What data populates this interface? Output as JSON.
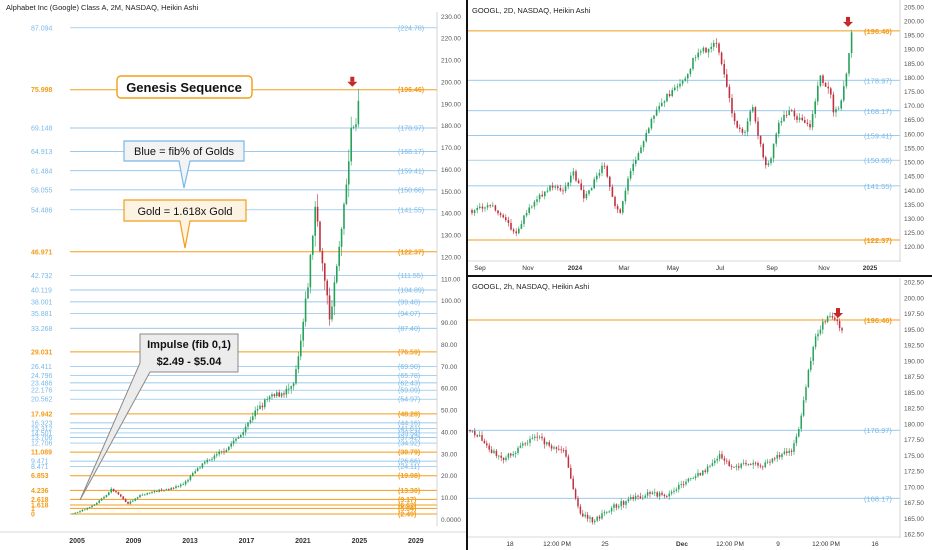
{
  "colors": {
    "gold": "#f29d1a",
    "blue": "#79b9e8",
    "up": "#26a15a",
    "down": "#c0303d",
    "arrow": "#c62828",
    "axis_text": "#555555"
  },
  "left_panel": {
    "title": "Alphabet Inc (Google) Class A, 2M, NASDAQ, Heikin Ashi",
    "annotations": {
      "genesis": "Genesis Sequence",
      "blue_note": "Blue = fib% of Golds",
      "gold_note": "Gold = 1.618x Gold",
      "impulse_line1": "Impulse (fib 0,1)",
      "impulse_line2": "$2.49 - $5.04"
    }
  },
  "top_right_panel": {
    "title": "GOOGL, 2D, NASDAQ, Heikin Ashi"
  },
  "bottom_right_panel": {
    "title": "GOOGL, 2h, NASDAQ, Heikin Ashi"
  },
  "chart_data": [
    {
      "type": "candlestick",
      "title": "Alphabet Inc (Google) Class A, 2M, NASDAQ, Heikin Ashi",
      "x_ticks": [
        "2005",
        "2009",
        "2013",
        "2017",
        "2021",
        "2025",
        "2029"
      ],
      "x_range": [
        2004.5,
        2030.5
      ],
      "ylim": [
        -3,
        232
      ],
      "y_ticks": [
        "230.00",
        "220.00",
        "210.00",
        "200.00",
        "190.00",
        "180.00",
        "170.00",
        "160.00",
        "150.00",
        "140.00",
        "130.00",
        "120.00",
        "110.00",
        "100.00",
        "90.00",
        "80.00",
        "70.00",
        "60.00",
        "50.00",
        "40.00",
        "30.00",
        "20.00",
        "10.00",
        "0.0000"
      ],
      "price_path": [
        [
          2004.7,
          2.5
        ],
        [
          2005.5,
          4.5
        ],
        [
          2006.5,
          8
        ],
        [
          2007.5,
          14
        ],
        [
          2008.6,
          7
        ],
        [
          2009.5,
          11
        ],
        [
          2010.5,
          13
        ],
        [
          2011.5,
          14
        ],
        [
          2012.5,
          16
        ],
        [
          2013.5,
          23
        ],
        [
          2014.5,
          28
        ],
        [
          2015.5,
          32
        ],
        [
          2016.5,
          38
        ],
        [
          2017.5,
          48
        ],
        [
          2018.5,
          55
        ],
        [
          2019.5,
          58
        ],
        [
          2020.3,
          60
        ],
        [
          2020.8,
          78
        ],
        [
          2021.4,
          110
        ],
        [
          2021.9,
          145
        ],
        [
          2022.3,
          120
        ],
        [
          2022.9,
          92
        ],
        [
          2023.3,
          110
        ],
        [
          2023.9,
          140
        ],
        [
          2024.4,
          175
        ],
        [
          2024.9,
          188
        ],
        [
          2025.1,
          196
        ]
      ],
      "fib_levels": [
        {
          "left": "87.094",
          "right": "(224.78)",
          "value": 224.78,
          "kind": "blue"
        },
        {
          "left": "75.998",
          "right": "(196.46)",
          "value": 196.46,
          "kind": "gold"
        },
        {
          "left": "69.148",
          "right": "(178.97)",
          "value": 178.97,
          "kind": "blue"
        },
        {
          "left": "64.913",
          "right": "(168.17)",
          "value": 168.17,
          "kind": "blue"
        },
        {
          "left": "61.484",
          "right": "(159.41)",
          "value": 159.41,
          "kind": "blue"
        },
        {
          "left": "58.055",
          "right": "(150.66)",
          "value": 150.66,
          "kind": "blue"
        },
        {
          "left": "54.486",
          "right": "(141.55)",
          "value": 141.55,
          "kind": "blue"
        },
        {
          "left": "46.971",
          "right": "(122.37)",
          "value": 122.37,
          "kind": "gold"
        },
        {
          "left": "42.732",
          "right": "(111.55)",
          "value": 111.55,
          "kind": "blue"
        },
        {
          "left": "40.119",
          "right": "(104.89)",
          "value": 104.89,
          "kind": "blue"
        },
        {
          "left": "38.001",
          "right": "(99.48)",
          "value": 99.48,
          "kind": "blue"
        },
        {
          "left": "35.881",
          "right": "(94.07)",
          "value": 94.07,
          "kind": "blue"
        },
        {
          "left": "33.268",
          "right": "(87.40)",
          "value": 87.4,
          "kind": "blue"
        },
        {
          "left": "29.031",
          "right": "(76.59)",
          "value": 76.59,
          "kind": "gold"
        },
        {
          "left": "26.411",
          "right": "(69.90)",
          "value": 69.9,
          "kind": "blue"
        },
        {
          "left": "24.796",
          "right": "(65.78)",
          "value": 65.78,
          "kind": "blue"
        },
        {
          "left": "23.486",
          "right": "(62.43)",
          "value": 62.43,
          "kind": "blue"
        },
        {
          "left": "22.176",
          "right": "(59.09)",
          "value": 59.09,
          "kind": "blue"
        },
        {
          "left": "20.562",
          "right": "(54.97)",
          "value": 54.97,
          "kind": "blue"
        },
        {
          "left": "17.942",
          "right": "(48.28)",
          "value": 48.28,
          "kind": "gold"
        },
        {
          "left": "16.323",
          "right": "(44.16)",
          "value": 44.16,
          "kind": "blue"
        },
        {
          "left": "15.312",
          "right": "(41.61)",
          "value": 41.61,
          "kind": "blue"
        },
        {
          "left": "14.501",
          "right": "(39.54)",
          "value": 39.54,
          "kind": "blue"
        },
        {
          "left": "13.706",
          "right": "(37.42)",
          "value": 37.42,
          "kind": "blue"
        },
        {
          "left": "12.706",
          "right": "(34.92)",
          "value": 34.92,
          "kind": "blue"
        },
        {
          "left": "11.089",
          "right": "(30.79)",
          "value": 30.79,
          "kind": "gold"
        },
        {
          "left": "9.471",
          "right": "(26.66)",
          "value": 26.66,
          "kind": "blue"
        },
        {
          "left": "8.471",
          "right": "(24.11)",
          "value": 24.11,
          "kind": "blue"
        },
        {
          "left": "6.853",
          "right": "(19.98)",
          "value": 19.98,
          "kind": "gold"
        },
        {
          "left": "4.236",
          "right": "(13.30)",
          "value": 13.3,
          "kind": "gold"
        },
        {
          "left": "2.618",
          "right": "(9.17)",
          "value": 9.17,
          "kind": "gold"
        },
        {
          "left": "1.618",
          "right": "(6.62)",
          "value": 6.62,
          "kind": "gold"
        },
        {
          "left": "1",
          "right": "(5.04)",
          "value": 5.04,
          "kind": "gold"
        },
        {
          "left": "0",
          "right": "(2.49)",
          "value": 2.49,
          "kind": "gold"
        }
      ],
      "marker_value": 196.46
    },
    {
      "type": "candlestick",
      "title": "GOOGL, 2D, NASDAQ, Heikin Ashi",
      "x_ticks": [
        "Sep",
        "Nov",
        "2024",
        "Mar",
        "May",
        "Jul",
        "Sep",
        "Nov",
        "2025"
      ],
      "ylim": [
        116,
        206
      ],
      "y_ticks": [
        "205.00",
        "200.00",
        "195.00",
        "190.00",
        "185.00",
        "180.00",
        "175.00",
        "170.00",
        "165.00",
        "160.00",
        "155.00",
        "150.00",
        "145.00",
        "140.00",
        "135.00",
        "130.00",
        "125.00",
        "120.00"
      ],
      "price_path": [
        [
          0,
          133
        ],
        [
          20,
          135
        ],
        [
          32,
          130
        ],
        [
          44,
          124
        ],
        [
          55,
          133
        ],
        [
          68,
          138
        ],
        [
          80,
          142
        ],
        [
          92,
          139
        ],
        [
          100,
          147
        ],
        [
          112,
          137
        ],
        [
          122,
          143
        ],
        [
          132,
          150
        ],
        [
          142,
          136
        ],
        [
          148,
          131
        ],
        [
          158,
          147
        ],
        [
          168,
          155
        ],
        [
          180,
          165
        ],
        [
          192,
          172
        ],
        [
          202,
          176
        ],
        [
          212,
          178
        ],
        [
          222,
          187
        ],
        [
          234,
          190
        ],
        [
          244,
          193
        ],
        [
          252,
          182
        ],
        [
          262,
          164
        ],
        [
          272,
          160
        ],
        [
          280,
          170
        ],
        [
          292,
          150
        ],
        [
          297,
          149
        ],
        [
          306,
          163
        ],
        [
          318,
          168
        ],
        [
          328,
          165
        ],
        [
          338,
          163
        ],
        [
          348,
          180
        ],
        [
          358,
          176
        ],
        [
          362,
          167
        ],
        [
          370,
          172
        ],
        [
          376,
          185
        ],
        [
          380,
          197
        ]
      ],
      "levels": [
        {
          "label": "(196.46)",
          "value": 196.46,
          "kind": "gold"
        },
        {
          "label": "(178.97)",
          "value": 178.97,
          "kind": "blue"
        },
        {
          "label": "(168.17)",
          "value": 168.17,
          "kind": "blue"
        },
        {
          "label": "(159.41)",
          "value": 159.41,
          "kind": "blue"
        },
        {
          "label": "(150.66)",
          "value": 150.66,
          "kind": "blue"
        },
        {
          "label": "(141.55)",
          "value": 141.55,
          "kind": "blue"
        },
        {
          "label": "(122.37)",
          "value": 122.37,
          "kind": "gold"
        }
      ],
      "marker_value": 196.46
    },
    {
      "type": "candlestick",
      "title": "GOOGL, 2h, NASDAQ, Heikin Ashi",
      "x_ticks": [
        "18",
        "12:00 PM",
        "25",
        "Dec",
        "12:00 PM",
        "9",
        "12:00 PM",
        "16"
      ],
      "ylim": [
        162.5,
        202.5
      ],
      "y_ticks": [
        "202.50",
        "200.00",
        "197.50",
        "195.00",
        "192.50",
        "190.00",
        "187.50",
        "185.00",
        "182.50",
        "180.00",
        "177.50",
        "175.00",
        "172.50",
        "170.00",
        "167.50",
        "165.00",
        "162.50"
      ],
      "price_path": [
        [
          0,
          179
        ],
        [
          12,
          177.5
        ],
        [
          22,
          175.5
        ],
        [
          32,
          174.5
        ],
        [
          45,
          175.5
        ],
        [
          55,
          177
        ],
        [
          68,
          178
        ],
        [
          80,
          176.5
        ],
        [
          95,
          175.5
        ],
        [
          102,
          170
        ],
        [
          110,
          166
        ],
        [
          122,
          164.5
        ],
        [
          140,
          166.5
        ],
        [
          160,
          168
        ],
        [
          180,
          169
        ],
        [
          198,
          168.5
        ],
        [
          212,
          170.5
        ],
        [
          230,
          172
        ],
        [
          250,
          175
        ],
        [
          262,
          173
        ],
        [
          278,
          174
        ],
        [
          290,
          173
        ],
        [
          310,
          175
        ],
        [
          322,
          176
        ],
        [
          330,
          180
        ],
        [
          338,
          188
        ],
        [
          346,
          194
        ],
        [
          356,
          196.8
        ],
        [
          364,
          197
        ],
        [
          372,
          195
        ]
      ],
      "levels": [
        {
          "label": "(196.46)",
          "value": 196.46,
          "kind": "gold"
        },
        {
          "label": "(178.97)",
          "value": 178.97,
          "kind": "blue"
        },
        {
          "label": "(168.17)",
          "value": 168.17,
          "kind": "blue"
        }
      ],
      "marker_value": 196.46
    }
  ]
}
